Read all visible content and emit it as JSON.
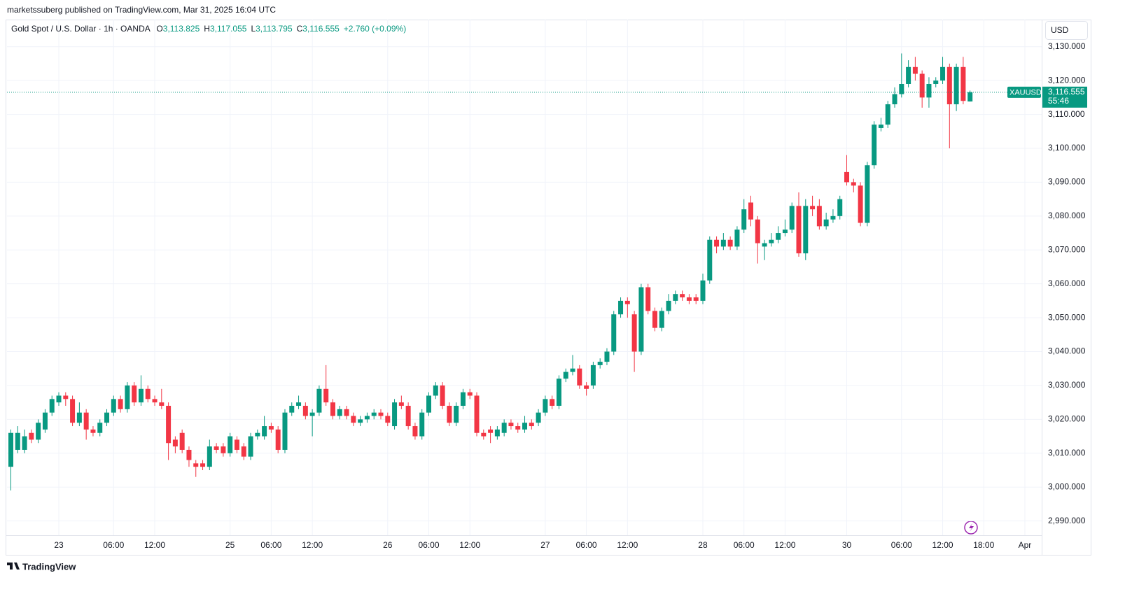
{
  "header": {
    "published": "marketssuberg published on TradingView.com, Mar 31, 2025 16:04 UTC"
  },
  "legend": {
    "symbol": "Gold Spot / U.S. Dollar · 1h · OANDA",
    "ohlc": [
      {
        "key": "O",
        "label": "3,113.825"
      },
      {
        "key": "H",
        "label": "3,117.055"
      },
      {
        "key": "L",
        "label": "3,113.795"
      },
      {
        "key": "C",
        "label": "3,116.555"
      }
    ],
    "change": "+2.760 (+0.09%)"
  },
  "price_axis": {
    "currency": "USD"
  },
  "last_price": {
    "symbol": "XAUUSD",
    "label": "3,116.555",
    "countdown": "55:46"
  },
  "footer": {
    "brand": "TradingView"
  },
  "chart_data": {
    "type": "candlestick",
    "up_color": "#089981",
    "down_color": "#f23645",
    "grid": true,
    "categories": [
      null,
      null,
      null,
      null,
      null,
      null,
      null,
      "23",
      null,
      null,
      null,
      null,
      null,
      null,
      null,
      "06:00",
      null,
      null,
      null,
      null,
      null,
      "12:00",
      null,
      null,
      null,
      null,
      null,
      null,
      null,
      null,
      null,
      null,
      "25",
      null,
      null,
      null,
      null,
      null,
      "06:00",
      null,
      null,
      null,
      null,
      null,
      "12:00",
      null,
      null,
      null,
      null,
      null,
      null,
      null,
      null,
      null,
      null,
      "26",
      null,
      null,
      null,
      null,
      null,
      "06:00",
      null,
      null,
      null,
      null,
      null,
      "12:00",
      null,
      null,
      null,
      null,
      null,
      null,
      null,
      null,
      null,
      null,
      "27",
      null,
      null,
      null,
      null,
      null,
      "06:00",
      null,
      null,
      null,
      null,
      null,
      "12:00",
      null,
      null,
      null,
      null,
      null,
      null,
      null,
      null,
      null,
      null,
      "28",
      null,
      null,
      null,
      null,
      null,
      "06:00",
      null,
      null,
      null,
      null,
      null,
      "12:00",
      null,
      null,
      null,
      null,
      null,
      null,
      null,
      null,
      "30",
      null,
      null,
      null,
      null,
      null,
      null,
      null,
      "06:00",
      null,
      null,
      null,
      null,
      null,
      "12:00",
      null,
      null,
      null,
      null,
      null,
      "18:00",
      null,
      null,
      null,
      null,
      null,
      "Apr"
    ],
    "open": [
      3006,
      3011,
      3011,
      3016,
      3014,
      3017,
      3022,
      3025,
      3027,
      3026,
      3019,
      3022,
      3017,
      3016,
      3019,
      3022,
      3026,
      3023,
      3030,
      3025,
      3029,
      3026,
      3025,
      3024,
      3014,
      3016,
      3011,
      3007,
      3007,
      3006,
      3012,
      3012,
      3010,
      3014,
      3012,
      3009,
      3015,
      3015,
      3018,
      3017,
      3011,
      3022,
      3024,
      3024,
      3021,
      3022,
      3029,
      3025,
      3021,
      3023,
      3021,
      3019,
      3020,
      3021,
      3022,
      3021,
      3018,
      3025,
      3024,
      3018,
      3015,
      3022,
      3027,
      3030,
      3024,
      3019,
      3024,
      3028,
      3027,
      3016,
      3017,
      3015,
      3016,
      3019,
      3018,
      3017,
      3019,
      3019,
      3022,
      3026,
      3024,
      3032,
      3034,
      3035,
      3030,
      3030,
      3036,
      3037,
      3040,
      3051,
      3055,
      3051,
      3040,
      3059,
      3052,
      3047,
      3052,
      3055,
      3057,
      3056,
      3056,
      3055,
      3061,
      3073,
      3071,
      3073,
      3071,
      3076,
      3084,
      3079,
      3071,
      3072,
      3073,
      3075,
      3076,
      3083,
      3069,
      3083,
      3083,
      3077,
      3079,
      3080,
      3093,
      3090,
      3089,
      3078,
      3095,
      3106,
      3107,
      3113,
      3116,
      3119,
      3124,
      3122,
      3115,
      3119,
      3120,
      3124,
      3113,
      3124,
      3113.825,
      null,
      null,
      null,
      null,
      null,
      null,
      null,
      null
    ],
    "high": [
      3017,
      3018,
      3017,
      3017,
      3020,
      3023,
      3027,
      3028,
      3028,
      3027,
      3025,
      3023,
      3018,
      3020,
      3023,
      3027,
      3027,
      3031,
      3031,
      3033,
      3030,
      3027,
      3029,
      3025,
      3015,
      3017,
      3012,
      3008,
      3008,
      3014,
      3013,
      3013,
      3016,
      3015,
      3013,
      3016,
      3017,
      3021,
      3019,
      3018,
      3023,
      3025,
      3027,
      3025,
      3023,
      3030,
      3036,
      3026,
      3024,
      3024,
      3022,
      3021,
      3022,
      3023,
      3023,
      3022,
      3026,
      3027,
      3025,
      3019,
      3023,
      3028,
      3031,
      3031,
      3025,
      3025,
      3029,
      3029,
      3028,
      3017,
      3018,
      3018,
      3020,
      3020,
      3019,
      3021,
      3020,
      3023,
      3027,
      3027,
      3033,
      3035,
      3039,
      3036,
      3031,
      3037,
      3038,
      3041,
      3052,
      3056,
      3056,
      3052,
      3060,
      3060,
      3053,
      3053,
      3057,
      3058,
      3058,
      3057,
      3057,
      3063,
      3074,
      3074,
      3075,
      3074,
      3077,
      3085,
      3086,
      3080,
      3073,
      3075,
      3077,
      3079,
      3084,
      3087,
      3085,
      3086,
      3085,
      3081,
      3082,
      3086,
      3098,
      3091,
      3090,
      3096,
      3108,
      3109,
      3114,
      3118,
      3128,
      3126,
      3127,
      3123,
      3121,
      3121,
      3127,
      3125,
      3125,
      3127,
      3117.055,
      null,
      null,
      null,
      null,
      null,
      null,
      null,
      null
    ],
    "low": [
      2999,
      3010,
      3010,
      3013,
      3013,
      3016,
      3021,
      3024,
      3024,
      3018,
      3018,
      3014,
      3015,
      3015,
      3018,
      3021,
      3022,
      3022,
      3024,
      3024,
      3025,
      3024,
      3023,
      3008,
      3010,
      3010,
      3006,
      3003,
      3005,
      3005,
      3010,
      3009,
      3009,
      3010,
      3008,
      3008,
      3014,
      3014,
      3016,
      3010,
      3010,
      3021,
      3023,
      3020,
      3015,
      3021,
      3024,
      3020,
      3020,
      3020,
      3018,
      3018,
      3019,
      3020,
      3020,
      3018,
      3017,
      3023,
      3017,
      3014,
      3014,
      3021,
      3026,
      3023,
      3018,
      3018,
      3023,
      3026,
      3015,
      3014,
      3013,
      3014,
      3015,
      3017,
      3016,
      3016,
      3017,
      3018,
      3021,
      3023,
      3023,
      3031,
      3033,
      3029,
      3027,
      3029,
      3035,
      3036,
      3039,
      3050,
      3050,
      3034,
      3039,
      3051,
      3046,
      3046,
      3051,
      3054,
      3055,
      3054,
      3054,
      3054,
      3060,
      3069,
      3070,
      3070,
      3070,
      3075,
      3077,
      3066,
      3067,
      3071,
      3072,
      3074,
      3075,
      3068,
      3067,
      3080,
      3076,
      3076,
      3078,
      3079,
      3089,
      3087,
      3077,
      3077,
      3094,
      3105,
      3106,
      3112,
      3115,
      3118,
      3120,
      3112,
      3112,
      3118,
      3119,
      3100,
      3111,
      3113,
      3113.795,
      null,
      null,
      null,
      null,
      null,
      null,
      null,
      null
    ],
    "close": [
      3016,
      3016,
      3015,
      3014,
      3019,
      3022,
      3026,
      3027,
      3026,
      3019,
      3022,
      3017,
      3016,
      3019,
      3022,
      3026,
      3023,
      3030,
      3025,
      3029,
      3026,
      3025,
      3024,
      3013,
      3012,
      3011,
      3008,
      3006,
      3006,
      3012,
      3011,
      3010,
      3015,
      3011,
      3009,
      3015,
      3016,
      3018,
      3017,
      3011,
      3022,
      3024,
      3025,
      3021,
      3022,
      3029,
      3025,
      3021,
      3023,
      3021,
      3019,
      3020,
      3021,
      3022,
      3021,
      3019,
      3025,
      3024,
      3018,
      3015,
      3022,
      3027,
      3030,
      3024,
      3019,
      3024,
      3028,
      3027,
      3016,
      3015,
      3016,
      3017,
      3019,
      3018,
      3017,
      3019,
      3018,
      3022,
      3026,
      3024,
      3032,
      3034,
      3035,
      3030,
      3029,
      3036,
      3037,
      3040,
      3051,
      3055,
      3054,
      3040,
      3059,
      3052,
      3047,
      3052,
      3055,
      3057,
      3056,
      3055,
      3055,
      3061,
      3073,
      3071,
      3073,
      3071,
      3076,
      3082,
      3079,
      3072,
      3072,
      3073,
      3075,
      3076,
      3083,
      3069,
      3083,
      3082,
      3077,
      3079,
      3080,
      3085,
      3090,
      3089,
      3078,
      3095,
      3107,
      3107,
      3113,
      3116,
      3119,
      3124,
      3122,
      3115,
      3119,
      3120,
      3124,
      3113,
      3124,
      3114,
      3116.555,
      null,
      null,
      null,
      null,
      null,
      null,
      null,
      null
    ],
    "ylim": [
      2986,
      3138
    ],
    "yticks": [
      {
        "value": 2990,
        "label": "2,990.000"
      },
      {
        "value": 3000,
        "label": "3,000.000"
      },
      {
        "value": 3010,
        "label": "3,010.000"
      },
      {
        "value": 3020,
        "label": "3,020.000"
      },
      {
        "value": 3030,
        "label": "3,030.000"
      },
      {
        "value": 3040,
        "label": "3,040.000"
      },
      {
        "value": 3050,
        "label": "3,050.000"
      },
      {
        "value": 3060,
        "label": "3,060.000"
      },
      {
        "value": 3070,
        "label": "3,070.000"
      },
      {
        "value": 3080,
        "label": "3,080.000"
      },
      {
        "value": 3090,
        "label": "3,090.000"
      },
      {
        "value": 3100,
        "label": "3,100.000"
      },
      {
        "value": 3110,
        "label": "3,110.000"
      },
      {
        "value": 3120,
        "label": "3,120.000"
      },
      {
        "value": 3130,
        "label": "3,130.000"
      }
    ]
  }
}
